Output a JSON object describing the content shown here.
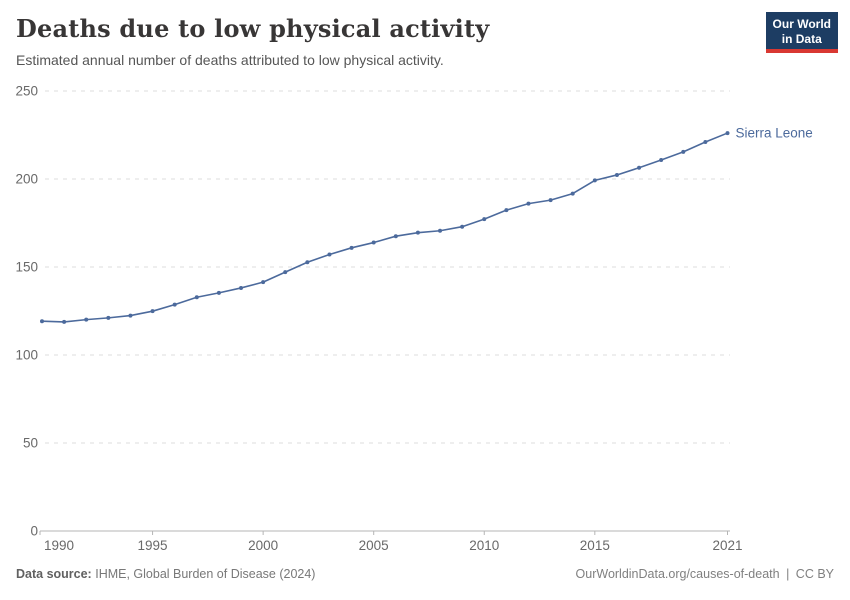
{
  "header": {
    "title": "Deaths due to low physical activity",
    "subtitle": "Estimated annual number of deaths attributed to low physical activity.",
    "logo": {
      "line1": "Our World",
      "line2": "in Data"
    }
  },
  "chart_data": {
    "type": "line",
    "title": "Deaths due to low physical activity",
    "x": [
      1990,
      1991,
      1992,
      1993,
      1994,
      1995,
      1996,
      1997,
      1998,
      1999,
      2000,
      2001,
      2002,
      2003,
      2004,
      2005,
      2006,
      2007,
      2008,
      2009,
      2010,
      2011,
      2012,
      2013,
      2014,
      2015,
      2016,
      2017,
      2018,
      2019,
      2020,
      2021
    ],
    "series": [
      {
        "name": "Sierra Leone",
        "color": "#4c6a9c",
        "values": [
          119.2,
          118.8,
          120.1,
          121.1,
          122.4,
          124.9,
          128.6,
          132.8,
          135.3,
          138.1,
          141.4,
          147.1,
          152.7,
          157.1,
          160.9,
          163.9,
          167.5,
          169.5,
          170.6,
          172.9,
          177.2,
          182.3,
          186.0,
          188.0,
          191.7,
          199.2,
          202.3,
          206.4,
          210.8,
          215.4,
          221.0,
          226.1
        ]
      }
    ],
    "xlabel": "",
    "ylabel": "",
    "xlim": [
      1990,
      2021
    ],
    "ylim": [
      0,
      250
    ],
    "x_ticks": [
      1990,
      1995,
      2000,
      2005,
      2010,
      2015,
      2021
    ],
    "y_ticks": [
      0,
      50,
      100,
      150,
      200,
      250
    ],
    "grid": "horizontal-dashed",
    "legend": "end-of-line-label",
    "colors": {
      "grid": "#dedede",
      "axis": "#b5b5b5",
      "tick_label": "#696969"
    }
  },
  "footer": {
    "source_label": "Data source:",
    "source_text": "IHME, Global Burden of Disease (2024)",
    "url": "OurWorldinData.org/causes-of-death",
    "separator": "|",
    "license": "CC BY"
  }
}
